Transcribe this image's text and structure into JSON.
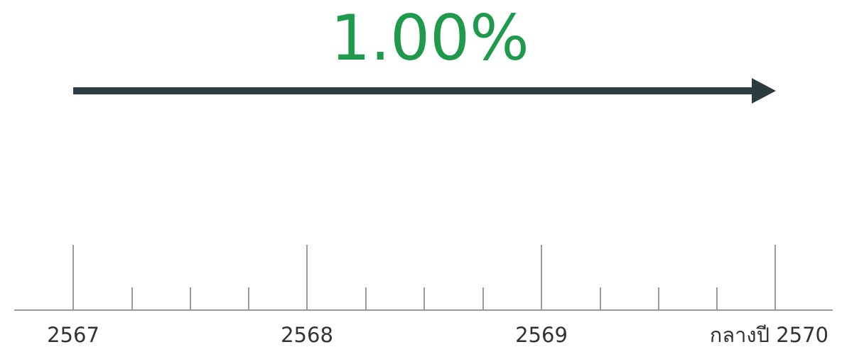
{
  "rate": "1.00%",
  "timeline": {
    "labels": [
      "2567",
      "2568",
      "2569",
      "กลางปี 2570"
    ]
  }
}
